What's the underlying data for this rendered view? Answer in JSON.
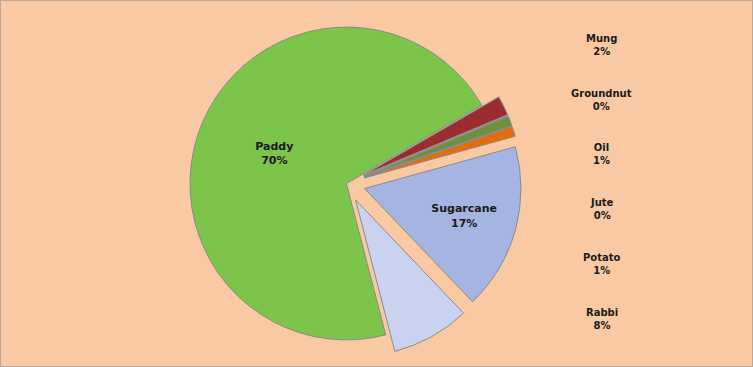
{
  "chart_data": {
    "type": "pie",
    "categories": [
      "Mung",
      "Groundnut",
      "Oil",
      "Jute",
      "Potato",
      "Sugarcane",
      "Rabbi",
      "Paddy"
    ],
    "values": [
      2,
      0,
      1,
      0,
      1,
      17,
      8,
      70
    ],
    "value_labels": [
      "2%",
      "0%",
      "1%",
      "0%",
      "1%",
      "17%",
      "8%",
      "70%"
    ],
    "colors": [
      "#9b2d30",
      "#c0504d",
      "#6e8f3c",
      "#7b5aa6",
      "#e46c0a",
      "#a5b4e0",
      "#c9d2ef",
      "#7cc44a"
    ],
    "data_labels": true
  }
}
